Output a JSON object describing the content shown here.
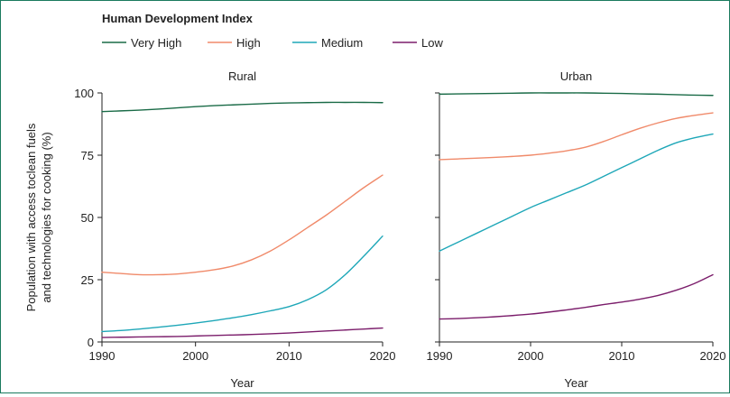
{
  "legend": {
    "title": "Human Development Index",
    "items": [
      {
        "label": "Very High",
        "color": "#1a6b47"
      },
      {
        "label": "High",
        "color": "#f08a6a"
      },
      {
        "label": "Medium",
        "color": "#1ea7b8"
      },
      {
        "label": "Low",
        "color": "#7b1d6b"
      }
    ]
  },
  "chart_data": [
    {
      "type": "line",
      "title": "Rural",
      "xlabel": "Year",
      "ylabel": "Population with access toclean fuels and technologies for cooking (%)",
      "xlim": [
        1990,
        2020
      ],
      "ylim": [
        0,
        100
      ],
      "xticks": [
        1990,
        2000,
        2010,
        2020
      ],
      "yticks": [
        0,
        25,
        50,
        75,
        100
      ],
      "x": [
        1990,
        1992,
        1994,
        1996,
        1998,
        2000,
        2002,
        2004,
        2006,
        2008,
        2010,
        2012,
        2014,
        2016,
        2018,
        2020
      ],
      "series": [
        {
          "name": "Very High",
          "values": [
            92.5,
            92.8,
            93.1,
            93.5,
            94.0,
            94.5,
            94.9,
            95.2,
            95.5,
            95.8,
            96.0,
            96.1,
            96.2,
            96.2,
            96.2,
            96.1
          ]
        },
        {
          "name": "High",
          "values": [
            28,
            27.5,
            27,
            27,
            27.3,
            28,
            29,
            30.5,
            33,
            36.5,
            41,
            46,
            51,
            56.5,
            62,
            67
          ]
        },
        {
          "name": "Medium",
          "values": [
            4.2,
            4.6,
            5.2,
            5.9,
            6.7,
            7.6,
            8.6,
            9.7,
            11,
            12.5,
            14.2,
            17,
            21,
            27,
            34.5,
            42.5
          ]
        },
        {
          "name": "Low",
          "values": [
            1.8,
            1.9,
            2.0,
            2.1,
            2.2,
            2.4,
            2.6,
            2.8,
            3.0,
            3.3,
            3.6,
            4.0,
            4.4,
            4.8,
            5.2,
            5.6
          ]
        }
      ]
    },
    {
      "type": "line",
      "title": "Urban",
      "xlabel": "Year",
      "ylabel": "",
      "xlim": [
        1990,
        2020
      ],
      "ylim": [
        0,
        100
      ],
      "xticks": [
        1990,
        2000,
        2010,
        2020
      ],
      "yticks": [
        0,
        25,
        50,
        75,
        100
      ],
      "x": [
        1990,
        1992,
        1994,
        1996,
        1998,
        2000,
        2002,
        2004,
        2006,
        2008,
        2010,
        2012,
        2014,
        2016,
        2018,
        2020
      ],
      "series": [
        {
          "name": "Very High",
          "values": [
            99.5,
            99.6,
            99.7,
            99.8,
            99.9,
            100,
            100,
            100,
            100,
            99.9,
            99.8,
            99.6,
            99.5,
            99.3,
            99.1,
            99.0
          ]
        },
        {
          "name": "High",
          "values": [
            73.2,
            73.5,
            73.8,
            74.1,
            74.5,
            75,
            75.8,
            76.8,
            78.2,
            80.5,
            83.2,
            85.8,
            88,
            89.8,
            91,
            92
          ]
        },
        {
          "name": "Medium",
          "values": [
            36.5,
            40,
            43.5,
            47,
            50.5,
            54,
            57,
            60,
            63,
            66.5,
            70,
            73.5,
            77,
            80,
            82,
            83.5
          ]
        },
        {
          "name": "Low",
          "values": [
            9.2,
            9.4,
            9.7,
            10.1,
            10.6,
            11.2,
            12,
            12.9,
            13.9,
            15,
            16,
            17.2,
            18.7,
            20.8,
            23.5,
            27
          ]
        }
      ]
    }
  ]
}
